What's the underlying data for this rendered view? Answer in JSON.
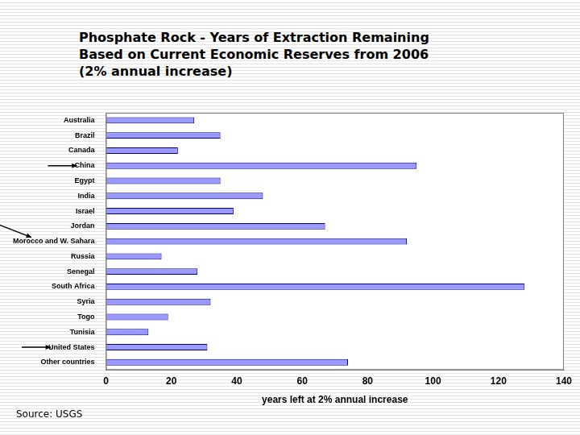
{
  "chart_data": {
    "type": "bar",
    "orientation": "horizontal",
    "title": [
      "Phosphate Rock - Years of Extraction Remaining",
      "Based on Current Economic Reserves from 2006",
      "(2% annual increase)"
    ],
    "categories": [
      "Australia",
      "Brazil",
      "Canada",
      "China",
      "Egypt",
      "India",
      "Israel",
      "Jordan",
      "Morocco and W. Sahara",
      "Russia",
      "Senegal",
      "South Africa",
      "Syria",
      "Togo",
      "Tunisia",
      "United States",
      "Other countries"
    ],
    "values": [
      27,
      35,
      22,
      95,
      35,
      48,
      39,
      67,
      92,
      17,
      28,
      128,
      32,
      19,
      13,
      31,
      74
    ],
    "color": "#9999ff",
    "xlabel": "years left at 2% annual increase",
    "xlim": [
      0,
      140
    ],
    "xticks": [
      0,
      20,
      40,
      60,
      80,
      100,
      120,
      140
    ],
    "grid": false,
    "source": "Source: USGS"
  }
}
